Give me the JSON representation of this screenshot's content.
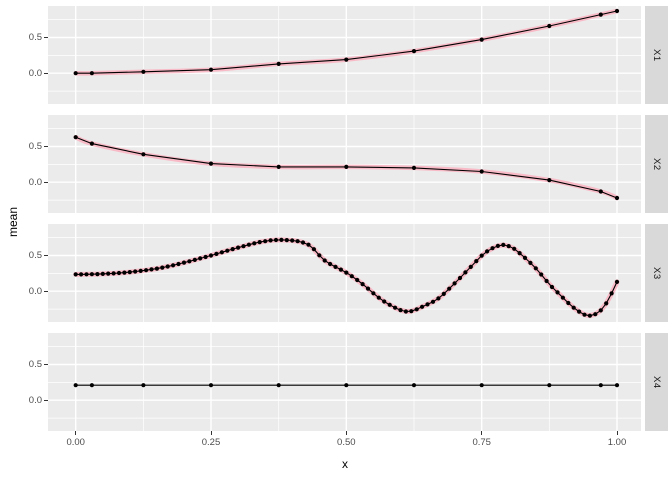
{
  "ui": {
    "x_axis_title": "x",
    "y_axis_title": "mean"
  },
  "chart_data": {
    "type": "line",
    "title": "",
    "xlabel": "x",
    "ylabel": "mean",
    "legend": "none",
    "facet_layout": "rows_right_strips",
    "x_tick_labels": [
      "0.00",
      "0.25",
      "0.50",
      "0.75",
      "1.00"
    ],
    "x_tick_values": [
      0,
      0.25,
      0.5,
      0.75,
      1.0
    ],
    "y_tick_labels": [
      "0.5",
      "0.0"
    ],
    "y_tick_values": [
      0.5,
      0.0
    ],
    "x_range": [
      -0.051,
      1.044
    ],
    "y_range": [
      -0.43,
      0.94
    ],
    "grid": {
      "on": true,
      "major_x": [
        0,
        0.25,
        0.5,
        0.75,
        1.0
      ],
      "minor_x": [
        0.125,
        0.375,
        0.625,
        0.875
      ],
      "major_y": [
        0,
        0.5
      ],
      "minor_y": [
        -0.25,
        0.25,
        0.75
      ]
    },
    "colors": {
      "panel_bg": "#EBEBEB",
      "strip_bg": "#D9D9D9",
      "grid": "#FFFFFF",
      "line": "#000000",
      "point": "#000000",
      "smooth": "#F8BAC6",
      "tick_text": "#4D4D4D",
      "axis_title": "#000000",
      "strip_text": "#1A1A1A"
    },
    "facets": [
      {
        "label": "X1",
        "has_smooth": true,
        "x": [
          0,
          0.03,
          0.125,
          0.25,
          0.375,
          0.5,
          0.625,
          0.75,
          0.875,
          0.97,
          1.0
        ],
        "y": [
          0.0,
          0.0,
          0.02,
          0.05,
          0.13,
          0.19,
          0.31,
          0.47,
          0.66,
          0.82,
          0.87
        ]
      },
      {
        "label": "X2",
        "has_smooth": true,
        "x": [
          0,
          0.03,
          0.125,
          0.25,
          0.375,
          0.5,
          0.625,
          0.75,
          0.875,
          0.97,
          1.0
        ],
        "y": [
          0.63,
          0.54,
          0.39,
          0.26,
          0.215,
          0.215,
          0.2,
          0.15,
          0.03,
          -0.13,
          -0.22
        ]
      },
      {
        "label": "X3",
        "has_smooth": true,
        "dense": true,
        "n_points": 101,
        "curve_x": [
          0.0,
          0.04,
          0.08,
          0.12,
          0.16,
          0.2,
          0.25,
          0.3,
          0.35,
          0.39,
          0.43,
          0.46,
          0.5,
          0.53,
          0.56,
          0.59,
          0.615,
          0.645,
          0.67,
          0.7,
          0.73,
          0.755,
          0.785,
          0.805,
          0.825,
          0.85,
          0.875,
          0.9,
          0.92,
          0.945,
          0.965,
          0.98,
          0.99,
          1.0
        ],
        "curve_y": [
          0.235,
          0.24,
          0.255,
          0.285,
          0.33,
          0.4,
          0.5,
          0.61,
          0.7,
          0.715,
          0.65,
          0.43,
          0.26,
          0.1,
          -0.09,
          -0.23,
          -0.285,
          -0.2,
          -0.1,
          0.11,
          0.34,
          0.53,
          0.645,
          0.615,
          0.5,
          0.32,
          0.1,
          -0.09,
          -0.23,
          -0.34,
          -0.3,
          -0.17,
          -0.03,
          0.13
        ]
      },
      {
        "label": "X4",
        "has_smooth": false,
        "x": [
          0,
          0.03,
          0.125,
          0.25,
          0.375,
          0.5,
          0.625,
          0.75,
          0.875,
          0.97,
          1.0
        ],
        "y": [
          0.21,
          0.21,
          0.21,
          0.21,
          0.21,
          0.21,
          0.21,
          0.21,
          0.21,
          0.21,
          0.21
        ]
      }
    ]
  }
}
